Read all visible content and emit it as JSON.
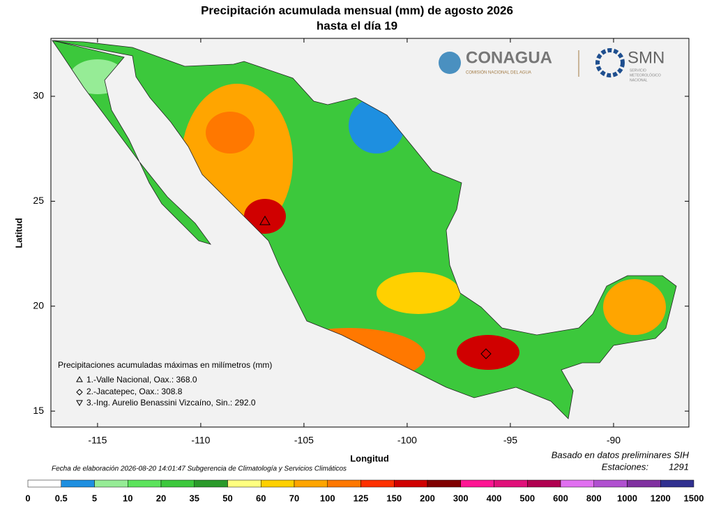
{
  "header": {
    "title_line1": "Precipitación acumulada mensual (mm) de agosto 2026",
    "title_line2": "hasta el día 19"
  },
  "logos": {
    "conagua": "CONAGUA",
    "conagua_sub": "COMISIÓN NACIONAL DEL AGUA",
    "smn": "SMN",
    "smn_sub": [
      "SERVICIO",
      "METEOROLÓGICO",
      "NACIONAL"
    ]
  },
  "map": {
    "xlabel": "Longitud",
    "ylabel": "Latitud",
    "xlim": [
      -117.26,
      -86.35
    ],
    "ylim": [
      14.24,
      32.76
    ],
    "xticks": [
      -115,
      -110,
      -105,
      -100,
      -95,
      -90
    ],
    "yticks": [
      15,
      20,
      25,
      30
    ]
  },
  "maxima": {
    "heading": "Precipitaciones acumuladas máximas en milímetros (mm)",
    "items": [
      "1.-Valle Nacional, Oax.: 368.0",
      "2.-Jacatepec, Oax.: 308.8",
      "3.-Ing. Aurelio Benassini Vizcaíno, Sin.: 292.0"
    ]
  },
  "footer": {
    "left": "Fecha de elaboración 2026-08-20 14:01:47 Subgerencia de Climatología y Servicios Climáticos",
    "right1": "Basado en datos preliminares SIH",
    "right2_label": "Estaciones:",
    "right2_value": 1291
  },
  "colorbar": {
    "bounds": [
      0,
      0.5,
      5,
      10,
      20,
      35,
      50,
      60,
      70,
      100,
      125,
      150,
      200,
      300,
      400,
      500,
      600,
      800,
      1000,
      1200,
      1500
    ],
    "colors": [
      "#ffffff",
      "#1e8fe0",
      "#96ec96",
      "#5ce35c",
      "#3cc83c",
      "#2a9a2a",
      "#ffff80",
      "#ffd000",
      "#ffa500",
      "#ff7800",
      "#ff3000",
      "#d00000",
      "#800000",
      "#ff1493",
      "#e0107a",
      "#b00050",
      "#e070f0",
      "#b050d0",
      "#8030a0",
      "#303090"
    ]
  }
}
